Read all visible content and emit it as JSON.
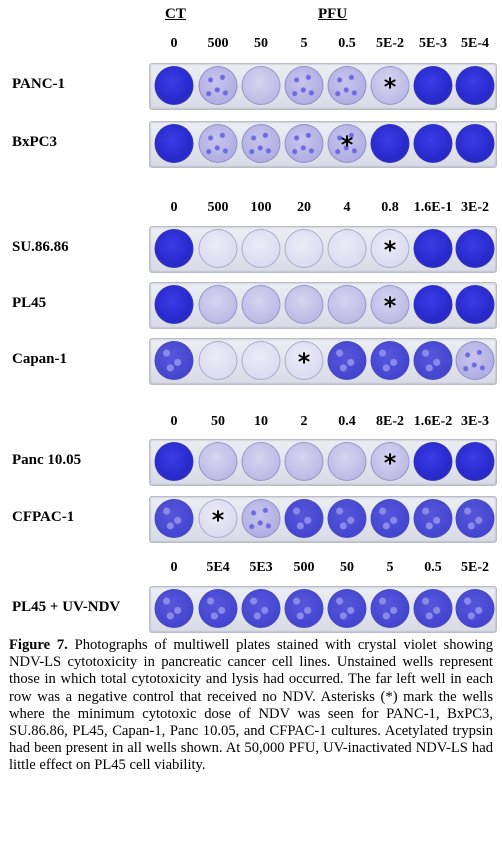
{
  "header": {
    "control": "CT",
    "treatment": "PFU"
  },
  "groups": [
    {
      "doses": [
        "0",
        "500",
        "50",
        "5",
        "0.5",
        "5E-2",
        "5E-3",
        "5E-4"
      ],
      "rows": [
        {
          "label": "PANC-1",
          "wells": [
            "dark",
            "speck",
            "light",
            "speck",
            "speck",
            "light",
            "dark",
            "dark"
          ],
          "star_well": 5
        },
        {
          "label": "BxPC3",
          "wells": [
            "dark",
            "speck",
            "speck",
            "speck",
            "speck",
            "dark",
            "dark",
            "dark"
          ],
          "star_well": 4
        }
      ]
    },
    {
      "doses": [
        "0",
        "500",
        "100",
        "20",
        "4",
        "0.8",
        "1.6E-1",
        "3E-2"
      ],
      "rows": [
        {
          "label": "SU.86.86",
          "wells": [
            "dark",
            "clear",
            "clear",
            "clear",
            "clear",
            "clear",
            "dark",
            "dark"
          ],
          "star_well": 5
        },
        {
          "label": "PL45",
          "wells": [
            "dark",
            "light",
            "light",
            "light",
            "light",
            "light",
            "dark",
            "dark"
          ],
          "star_well": 5
        },
        {
          "label": "Capan-1",
          "wells": [
            "mottle",
            "clear",
            "clear",
            "clear",
            "mottle",
            "mottle",
            "mottle",
            "speck"
          ],
          "star_well": 3
        }
      ]
    },
    {
      "doses": [
        "0",
        "50",
        "10",
        "2",
        "0.4",
        "8E-2",
        "1.6E-2",
        "3E-3"
      ],
      "rows": [
        {
          "label": "Panc 10.05",
          "wells": [
            "dark",
            "light",
            "light",
            "light",
            "light",
            "light",
            "dark",
            "dark"
          ],
          "star_well": 5
        },
        {
          "label": "CFPAC-1",
          "wells": [
            "mottle",
            "clear",
            "speck",
            "mottle",
            "mottle",
            "mottle",
            "mottle",
            "mottle"
          ],
          "star_well": 1
        }
      ]
    },
    {
      "doses": [
        "0",
        "5E4",
        "5E3",
        "500",
        "50",
        "5",
        "0.5",
        "5E-2"
      ],
      "rows": [
        {
          "label": "PL45 + UV-NDV",
          "wells": [
            "mottle",
            "mottle",
            "mottle",
            "mottle",
            "mottle",
            "mottle",
            "mottle",
            "mottle"
          ],
          "star_well": -1
        }
      ]
    }
  ],
  "star_symbol": "*",
  "caption": {
    "title": "Figure 7.",
    "text": "Photographs of multiwell plates stained with crystal violet showing NDV-LS cytotoxicity in pancreatic cancer cell lines. Unstained wells represent those in which total cytotoxicity and lysis had occurred. The far left well in each row was a negative control that received no NDV. Asterisks (*) mark the wells where the minimum cytotoxic dose of NDV was seen for PANC-1, BxPC3, SU.86.86, PL45, Capan-1, Panc 10.05, and CFPAC-1 cultures. Acetylated trypsin had been present in all wells shown. At 50,000 PFU, UV-inactivated NDV-LS had little effect on PL45 cell viability."
  }
}
